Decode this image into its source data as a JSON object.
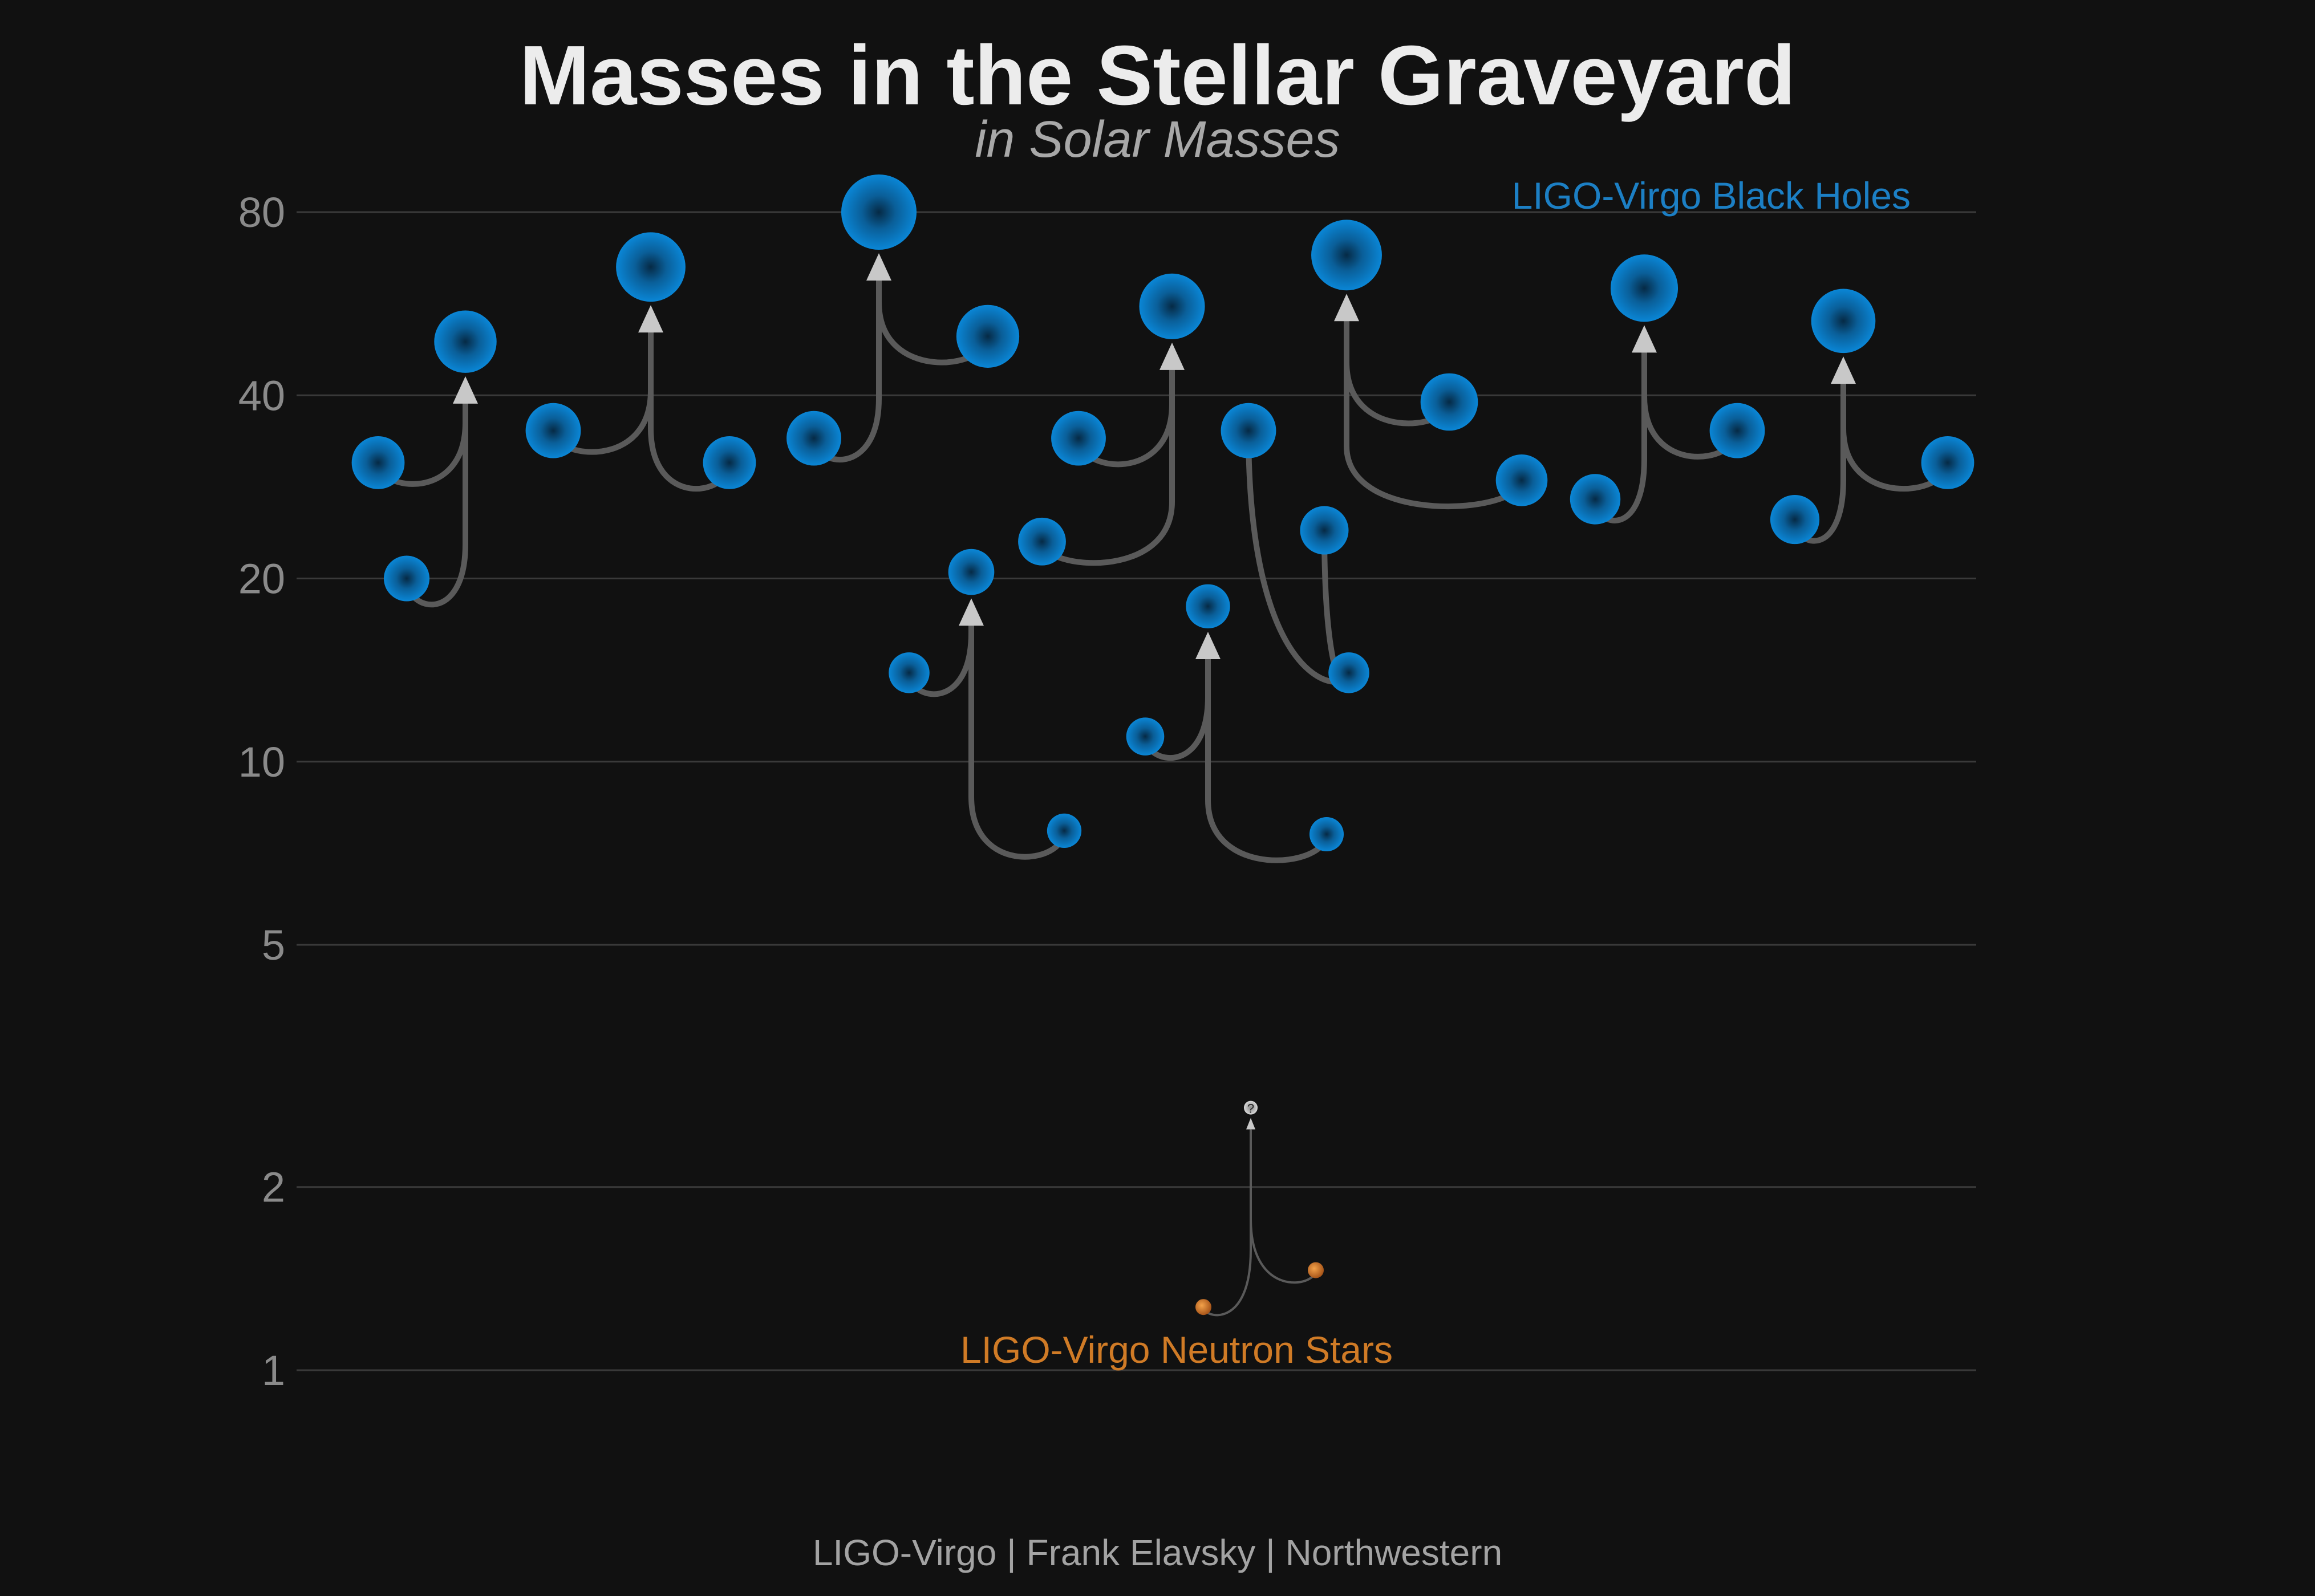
{
  "title": "Masses in the Stellar Graveyard",
  "subtitle": "in Solar Masses",
  "credit": "LIGO-Virgo | Frank Elavsky | Northwestern",
  "colors": {
    "background": "#111111",
    "black_hole": "#0a7dc9",
    "neutron_star": "#d07b26",
    "unknown_remnant": "#c8c8c8",
    "merger_track": "#5a5a5a"
  },
  "chart_data": {
    "type": "scatter",
    "scale": "log",
    "ylim": [
      1,
      80
    ],
    "y_ticks": [
      {
        "value": 80,
        "label": "80"
      },
      {
        "value": 40,
        "label": "40"
      },
      {
        "value": 20,
        "label": "20"
      },
      {
        "value": 10,
        "label": "10"
      },
      {
        "value": 5,
        "label": "5"
      },
      {
        "value": 2,
        "label": "2"
      },
      {
        "value": 1,
        "label": "1"
      }
    ],
    "grid": true,
    "legend_labels": {
      "black_holes": "LIGO-Virgo Black Holes",
      "neutron_stars": "LIGO-Virgo Neutron Stars"
    },
    "mergers": [
      {
        "kind": "black_hole",
        "progenitor_1": 31,
        "progenitor_2": 20,
        "remnant": 49
      },
      {
        "kind": "black_hole",
        "progenitor_1": 35,
        "progenitor_2": 31,
        "remnant": 65
      },
      {
        "kind": "black_hole",
        "progenitor_1": 34,
        "progenitor_2": 50,
        "remnant": 80
      },
      {
        "kind": "black_hole",
        "progenitor_1": 14,
        "progenitor_2": 7.7,
        "remnant": 20.5
      },
      {
        "kind": "black_hole",
        "progenitor_1": 23,
        "progenitor_2": 34,
        "remnant": 56
      },
      {
        "kind": "black_hole",
        "progenitor_1": 11,
        "progenitor_2": 7.6,
        "remnant": 18
      },
      {
        "kind": "black_hole",
        "progenitor_1": 35,
        "progenitor_2": 24,
        "remnant": 14,
        "note": "remnant lower on plot"
      },
      {
        "kind": "black_hole",
        "progenitor_1": 39,
        "progenitor_2": 29,
        "remnant": 68
      },
      {
        "kind": "black_hole",
        "progenitor_1": 27,
        "progenitor_2": 35,
        "remnant": 60
      },
      {
        "kind": "black_hole",
        "progenitor_1": 25,
        "progenitor_2": 31,
        "remnant": 53
      },
      {
        "kind": "neutron_star",
        "progenitor_1": 1.27,
        "progenitor_2": 1.46,
        "remnant": 2.7,
        "remnant_label": "?"
      }
    ]
  }
}
